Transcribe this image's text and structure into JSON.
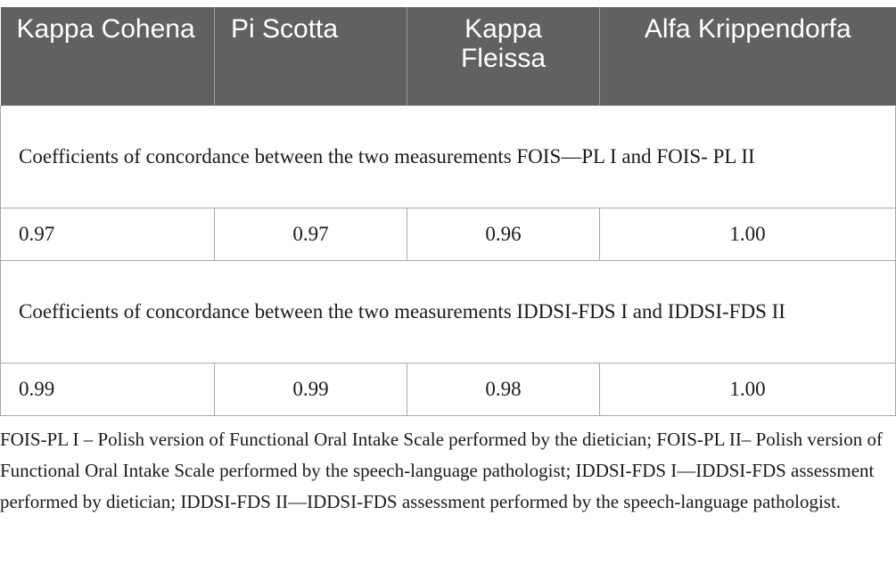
{
  "table": {
    "headers": [
      "Kappa Cohena",
      "Pi Scotta",
      "Kappa Fleissa",
      "Alfa Krippendorfa"
    ],
    "sections": [
      {
        "title": "Coefficients of concordance between the two measurements FOIS—PL I and FOIS- PL II",
        "values": [
          "0.97",
          "0.97",
          "0.96",
          "1.00"
        ]
      },
      {
        "title": "Coefficients of concordance between the two measurements IDDSI-FDS I and IDDSI-FDS II",
        "values": [
          "0.99",
          "0.99",
          "0.98",
          "1.00"
        ]
      }
    ]
  },
  "footnote": "FOIS-PL I – Polish version of Functional Oral Intake Scale performed by the dietician; FOIS-PL II– Polish version of Functional Oral Intake Scale performed by the speech-language pathologist; IDDSI-FDS I—IDDSI-FDS assessment performed by dietician; IDDSI-FDS II—IDDSI-FDS assessment performed by the speech-language pathologist."
}
